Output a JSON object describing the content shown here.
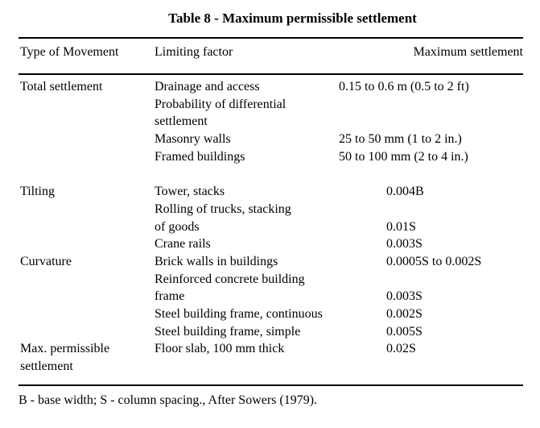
{
  "page": {
    "title": "Table 8 - Maximum permissible settlement",
    "columns": {
      "movement": "Type of Movement",
      "limiting": "Limiting factor",
      "max": "Maximum settlement"
    },
    "rows": [
      {
        "c1": "Total settlement",
        "c2": "Drainage and access",
        "c3": "0.15 to 0.6 m (0.5 to 2 ft)"
      },
      {
        "c1": "",
        "c2": "Probability of differential",
        "c3": ""
      },
      {
        "c1": "",
        "c2": "settlement",
        "c3": ""
      },
      {
        "c1": "",
        "c2": "Masonry walls",
        "c3": "25 to 50 mm (1 to 2 in.)"
      },
      {
        "c1": "",
        "c2": "Framed buildings",
        "c3": "50 to 100 mm (2 to 4 in.)"
      },
      {
        "c1": "",
        "c2": "",
        "c3": ""
      },
      {
        "c1": "Tilting",
        "c2": "Tower, stacks",
        "c3": "0.004B"
      },
      {
        "c1": "",
        "c2": "Rolling of trucks, stacking",
        "c3": ""
      },
      {
        "c1": "",
        "c2": "of goods",
        "c3": "0.01S"
      },
      {
        "c1": "",
        "c2": "Crane rails",
        "c3": "0.003S"
      },
      {
        "c1": "Curvature",
        "c2": "Brick walls in buildings",
        "c3": "0.0005S to 0.002S"
      },
      {
        "c1": "",
        "c2": "Reinforced concrete building",
        "c3": ""
      },
      {
        "c1": "",
        "c2": "frame",
        "c3": "0.003S"
      },
      {
        "c1": "",
        "c2": "Steel building frame, continuous",
        "c3": "0.002S"
      },
      {
        "c1": "",
        "c2": "Steel building frame, simple",
        "c3": "0.005S"
      },
      {
        "c1": "Max. permissible",
        "c2": "Floor slab, 100 mm thick",
        "c3": "0.02S"
      },
      {
        "c1": "settlement",
        "c2": "",
        "c3": ""
      }
    ],
    "footnote": "B - base width; S - column spacing., After Sowers (1979)."
  },
  "colors": {
    "text": "#000000",
    "background": "#ffffff",
    "rule": "#000000"
  }
}
